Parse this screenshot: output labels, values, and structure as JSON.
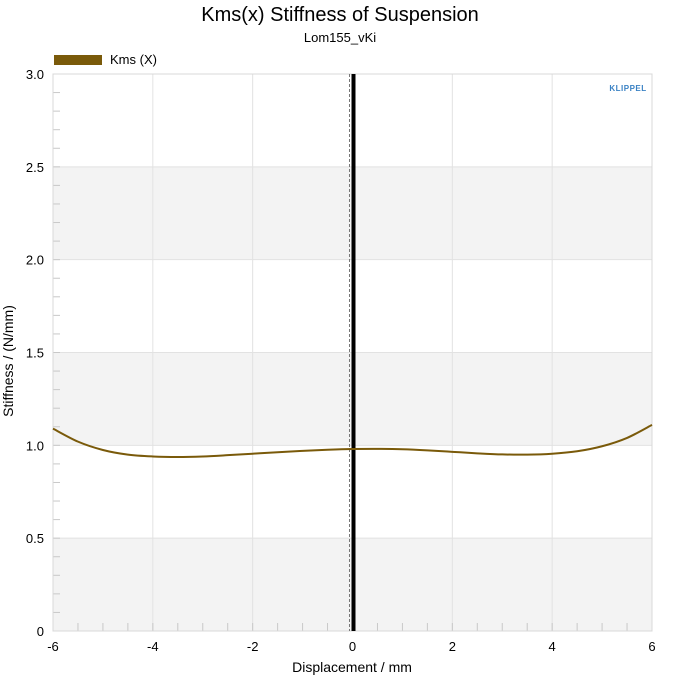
{
  "chart_data": {
    "type": "line",
    "title": "Kms(x) Stiffness of Suspension",
    "subtitle": "Lom155_vKi",
    "xlabel": "Displacement / mm",
    "ylabel": "Stiffness / (N/mm)",
    "xlim": [
      -6,
      6
    ],
    "ylim": [
      0,
      3.0
    ],
    "x_ticks": [
      "-6",
      "-4",
      "-2",
      "0",
      "2",
      "4",
      "6"
    ],
    "y_ticks": [
      "0",
      "0.5",
      "1.0",
      "1.5",
      "2.0",
      "2.5",
      "3.0"
    ],
    "grid": true,
    "legend_position": "top-left",
    "logo": "KLIPPEL",
    "marker_line": {
      "x": 0
    },
    "series": [
      {
        "name": "Kms (X)",
        "color": "#7a5a0a",
        "x": [
          -6,
          -5.5,
          -5,
          -4.5,
          -4,
          -3.5,
          -3,
          -2.5,
          -2,
          -1.5,
          -1,
          -0.5,
          0,
          0.5,
          1,
          1.5,
          2,
          2.5,
          3,
          3.5,
          4,
          4.5,
          5,
          5.5,
          6
        ],
        "y": [
          1.09,
          1.02,
          0.975,
          0.95,
          0.94,
          0.937,
          0.94,
          0.947,
          0.955,
          0.963,
          0.97,
          0.976,
          0.98,
          0.981,
          0.979,
          0.973,
          0.965,
          0.957,
          0.951,
          0.95,
          0.955,
          0.968,
          0.995,
          1.04,
          1.11
        ]
      }
    ]
  },
  "colors": {
    "band": "#f3f3f3",
    "grid": "#e2e2e2",
    "axis": "#888888",
    "marker": "#000000",
    "logo": "#3a82c4"
  }
}
